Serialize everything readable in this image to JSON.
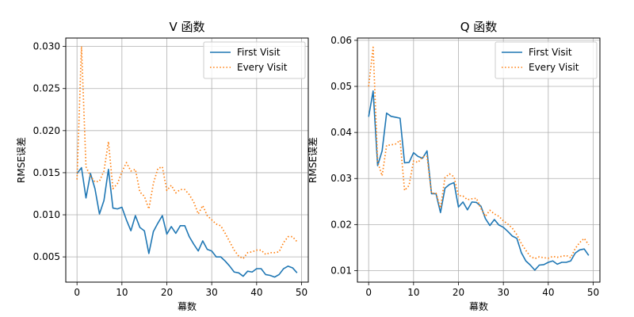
{
  "chart_data": [
    {
      "type": "line",
      "title": "V 函数",
      "xlabel": "幕数",
      "ylabel": "RMSE误差",
      "xlim": [
        -2.5,
        51.5
      ],
      "ylim": [
        0.002,
        0.031
      ],
      "xticks": [
        0,
        10,
        20,
        30,
        40,
        50
      ],
      "xtick_labels": [
        "0",
        "10",
        "20",
        "30",
        "40",
        "50"
      ],
      "yticks": [
        0.005,
        0.01,
        0.015,
        0.02,
        0.025,
        0.03
      ],
      "ytick_labels": [
        "0.005",
        "0.010",
        "0.015",
        "0.020",
        "0.025",
        "0.030"
      ],
      "grid": true,
      "legend_position": "top-right",
      "x": [
        0,
        1,
        2,
        3,
        4,
        5,
        6,
        7,
        8,
        9,
        10,
        11,
        12,
        13,
        14,
        15,
        16,
        17,
        18,
        19,
        20,
        21,
        22,
        23,
        24,
        25,
        26,
        27,
        28,
        29,
        30,
        31,
        32,
        33,
        34,
        35,
        36,
        37,
        38,
        39,
        40,
        41,
        42,
        43,
        44,
        45,
        46,
        47,
        48,
        49
      ],
      "series": [
        {
          "name": "First Visit",
          "color": "#1f77b4",
          "style": "solid",
          "values": [
            0.0149,
            0.0156,
            0.012,
            0.0149,
            0.0131,
            0.0101,
            0.0117,
            0.0154,
            0.0108,
            0.0107,
            0.0109,
            0.0094,
            0.0081,
            0.0099,
            0.0085,
            0.0081,
            0.0054,
            0.008,
            0.009,
            0.0099,
            0.0077,
            0.0086,
            0.0078,
            0.0087,
            0.0087,
            0.0074,
            0.0065,
            0.0057,
            0.0069,
            0.0059,
            0.0057,
            0.005,
            0.005,
            0.0045,
            0.0039,
            0.0032,
            0.0031,
            0.0027,
            0.0033,
            0.0032,
            0.0036,
            0.0036,
            0.0029,
            0.0028,
            0.0026,
            0.0029,
            0.0036,
            0.0039,
            0.0037,
            0.0031
          ]
        },
        {
          "name": "Every Visit",
          "color": "#ff7f0e",
          "style": "dotted",
          "values": [
            0.0142,
            0.03,
            0.0157,
            0.0146,
            0.0139,
            0.014,
            0.0152,
            0.0187,
            0.0131,
            0.0137,
            0.0151,
            0.0162,
            0.0152,
            0.0154,
            0.0127,
            0.0122,
            0.0107,
            0.0137,
            0.0155,
            0.0157,
            0.0129,
            0.0135,
            0.0126,
            0.013,
            0.013,
            0.0124,
            0.0115,
            0.0101,
            0.0111,
            0.0099,
            0.0094,
            0.0089,
            0.0087,
            0.0078,
            0.0068,
            0.0058,
            0.0051,
            0.0048,
            0.0055,
            0.0056,
            0.0058,
            0.0058,
            0.0053,
            0.0055,
            0.0055,
            0.0056,
            0.0067,
            0.0074,
            0.0074,
            0.0068
          ]
        }
      ]
    },
    {
      "type": "line",
      "title": "Q 函数",
      "xlabel": "幕数",
      "ylabel": "RMSE误差",
      "xlim": [
        -2.5,
        51.5
      ],
      "ylim": [
        0.0075,
        0.0605
      ],
      "xticks": [
        0,
        10,
        20,
        30,
        40,
        50
      ],
      "xtick_labels": [
        "0",
        "10",
        "20",
        "30",
        "40",
        "50"
      ],
      "yticks": [
        0.01,
        0.02,
        0.03,
        0.04,
        0.05,
        0.06
      ],
      "ytick_labels": [
        "0.01",
        "0.02",
        "0.03",
        "0.04",
        "0.05",
        "0.06"
      ],
      "grid": true,
      "legend_position": "top-right",
      "x": [
        0,
        1,
        2,
        3,
        4,
        5,
        6,
        7,
        8,
        9,
        10,
        11,
        12,
        13,
        14,
        15,
        16,
        17,
        18,
        19,
        20,
        21,
        22,
        23,
        24,
        25,
        26,
        27,
        28,
        29,
        30,
        31,
        32,
        33,
        34,
        35,
        36,
        37,
        38,
        39,
        40,
        41,
        42,
        43,
        44,
        45,
        46,
        47,
        48,
        49
      ],
      "series": [
        {
          "name": "First Visit",
          "color": "#1f77b4",
          "style": "solid",
          "values": [
            0.0434,
            0.049,
            0.0328,
            0.036,
            0.0442,
            0.0435,
            0.0433,
            0.0431,
            0.0334,
            0.0335,
            0.0356,
            0.0348,
            0.0344,
            0.036,
            0.0267,
            0.0267,
            0.0226,
            0.0279,
            0.0287,
            0.0291,
            0.0238,
            0.0249,
            0.0232,
            0.0249,
            0.0248,
            0.024,
            0.0213,
            0.0198,
            0.0211,
            0.0199,
            0.0194,
            0.0185,
            0.0175,
            0.017,
            0.0139,
            0.0121,
            0.0112,
            0.0101,
            0.0112,
            0.0113,
            0.0118,
            0.0121,
            0.0114,
            0.0118,
            0.0118,
            0.0121,
            0.0138,
            0.0145,
            0.0147,
            0.0133
          ]
        },
        {
          "name": "Every Visit",
          "color": "#ff7f0e",
          "style": "dotted",
          "values": [
            0.05,
            0.0585,
            0.0336,
            0.0306,
            0.0372,
            0.0373,
            0.0375,
            0.0383,
            0.0274,
            0.0285,
            0.0338,
            0.0335,
            0.0347,
            0.0348,
            0.0268,
            0.0268,
            0.0236,
            0.0302,
            0.031,
            0.0304,
            0.0263,
            0.0262,
            0.0254,
            0.0256,
            0.0257,
            0.0235,
            0.0218,
            0.0231,
            0.0223,
            0.0218,
            0.0208,
            0.0201,
            0.0192,
            0.0178,
            0.0159,
            0.0144,
            0.0131,
            0.0126,
            0.013,
            0.0128,
            0.0127,
            0.0131,
            0.0129,
            0.0131,
            0.0133,
            0.0128,
            0.0148,
            0.0161,
            0.017,
            0.0156
          ]
        }
      ]
    }
  ]
}
